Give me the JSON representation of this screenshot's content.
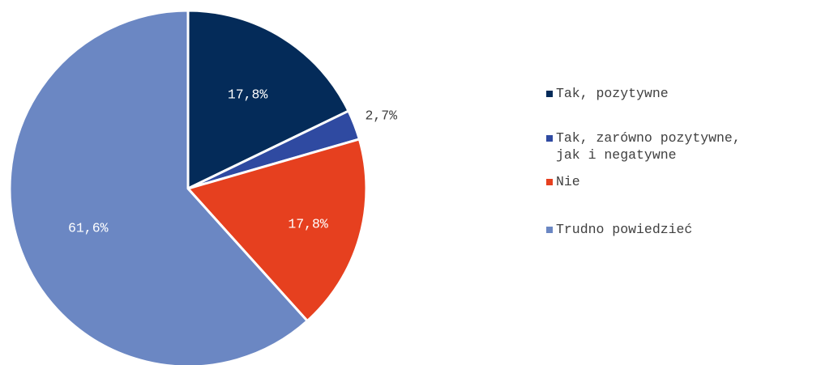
{
  "chart_data": {
    "type": "pie",
    "title": "",
    "slices": [
      {
        "label": "Tak, pozytywne",
        "value": 17.8,
        "display": "17,8%",
        "color": "#042b59",
        "label_color": "#ffffff"
      },
      {
        "label": "Tak, zarówno pozytywne,\njak i negatywne",
        "value": 2.7,
        "display": "2,7%",
        "color": "#2f4aa1",
        "label_color": "#404040"
      },
      {
        "label": "Nie",
        "value": 17.8,
        "display": "17,8%",
        "color": "#e6401f",
        "label_color": "#ffffff"
      },
      {
        "label": "Trudno powiedzieć",
        "value": 61.6,
        "display": "61,6%",
        "color": "#6b87c3",
        "label_color": "#ffffff"
      }
    ],
    "legend_position": "right"
  }
}
